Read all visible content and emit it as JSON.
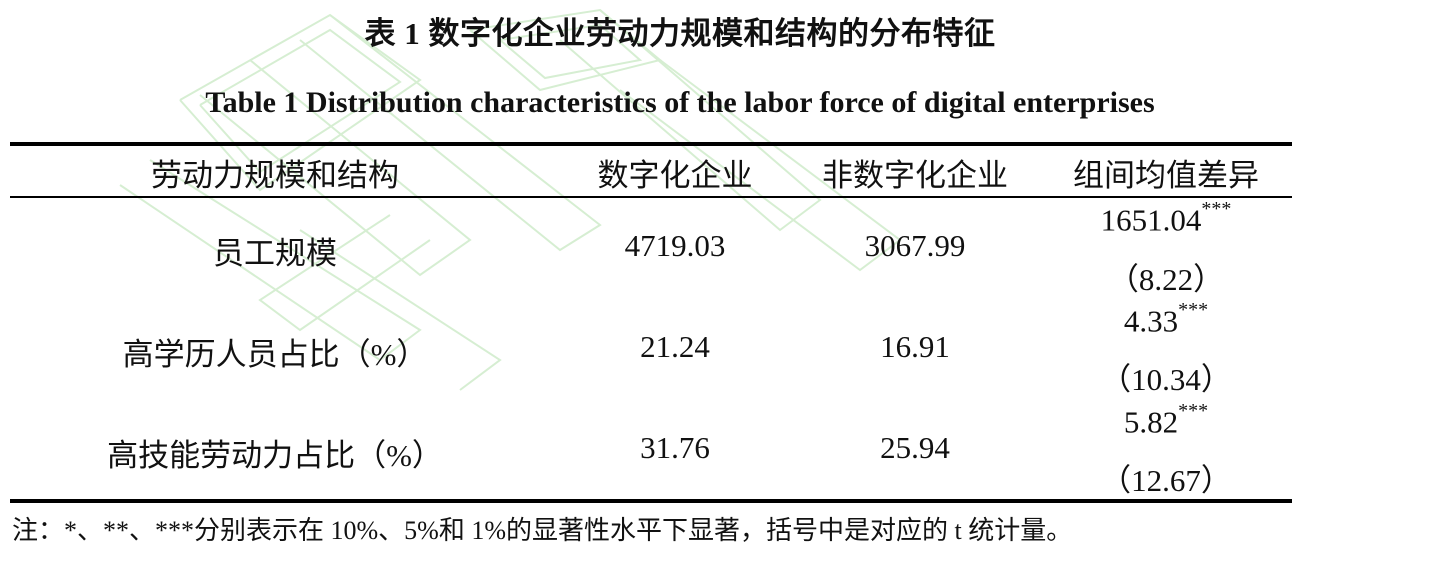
{
  "title_cn": "表 1 数字化企业劳动力规模和结构的分布特征",
  "title_en": "Table 1 Distribution characteristics of the labor force of digital enterprises",
  "table": {
    "headers": [
      "劳动力规模和结构",
      "数字化企业",
      "非数字化企业",
      "组间均值差异"
    ],
    "rows": [
      {
        "label": "员工规模",
        "digital": "4719.03",
        "non_digital": "3067.99",
        "diff": "1651.04",
        "diff_sig": "***",
        "t_stat": "（8.22）"
      },
      {
        "label": "高学历人员占比（%）",
        "digital": "21.24",
        "non_digital": "16.91",
        "diff": "4.33",
        "diff_sig": "***",
        "t_stat": "（10.34）"
      },
      {
        "label": "高技能劳动力占比（%）",
        "digital": "31.76",
        "non_digital": "25.94",
        "diff": "5.82",
        "diff_sig": "***",
        "t_stat": "（12.67）"
      }
    ]
  },
  "note": "注：*、**、***分别表示在 10%、5%和 1%的显著性水平下显著，括号中是对应的 t 统计量。",
  "colors": {
    "text": "#111111",
    "rules": "#000000",
    "watermark": "#cfeacb"
  }
}
